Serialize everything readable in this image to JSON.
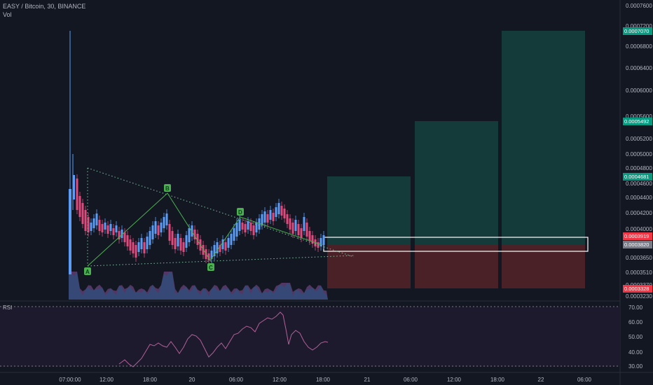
{
  "header": {
    "symbol_line": "EASY / Bitcoin, 30, BINANCE",
    "volume_label": "Vol"
  },
  "rsi": {
    "label": "RSI",
    "axis_ticks": [
      "70.00",
      "60.00",
      "50.00",
      "40.00",
      "30.00"
    ]
  },
  "price_axis": {
    "ticks": [
      "0.0007600",
      "0.0007200",
      "0.0006800",
      "0.0006400",
      "0.0006000",
      "0.0005600",
      "0.0005200",
      "0.0005000",
      "0.0004800",
      "0.0004600",
      "0.0004400",
      "0.0004200",
      "0.0004000",
      "0.0003650",
      "0.0003510",
      "0.0003370",
      "0.0003230"
    ],
    "badges": [
      {
        "text": "0.0007070",
        "color": "#089981"
      },
      {
        "text": "0.0005492",
        "color": "#089981"
      },
      {
        "text": "0.0004681",
        "color": "#089981"
      },
      {
        "text": "0.0003919",
        "color": "#f23645"
      },
      {
        "text": "0.0003820",
        "color": "#787b86"
      },
      {
        "text": "0.0003328",
        "color": "#f23645"
      }
    ]
  },
  "time_axis": {
    "ticks": [
      "07:00:00",
      "12:00",
      "18:00",
      "20",
      "06:00",
      "12:00",
      "18:00",
      "21",
      "06:00",
      "12:00",
      "18:00",
      "22",
      "06:00"
    ]
  },
  "pattern_points": [
    "A",
    "B",
    "C",
    "D"
  ],
  "colors": {
    "bull": "#26a69a",
    "bear": "#ef5350",
    "candle_up": "#5b9cf6",
    "candle_down": "#e2497c",
    "tp_zone": "#143a3a",
    "sl_zone": "#4a2127",
    "pattern": "#4caf50",
    "rsi_line": "#b5609a"
  }
}
